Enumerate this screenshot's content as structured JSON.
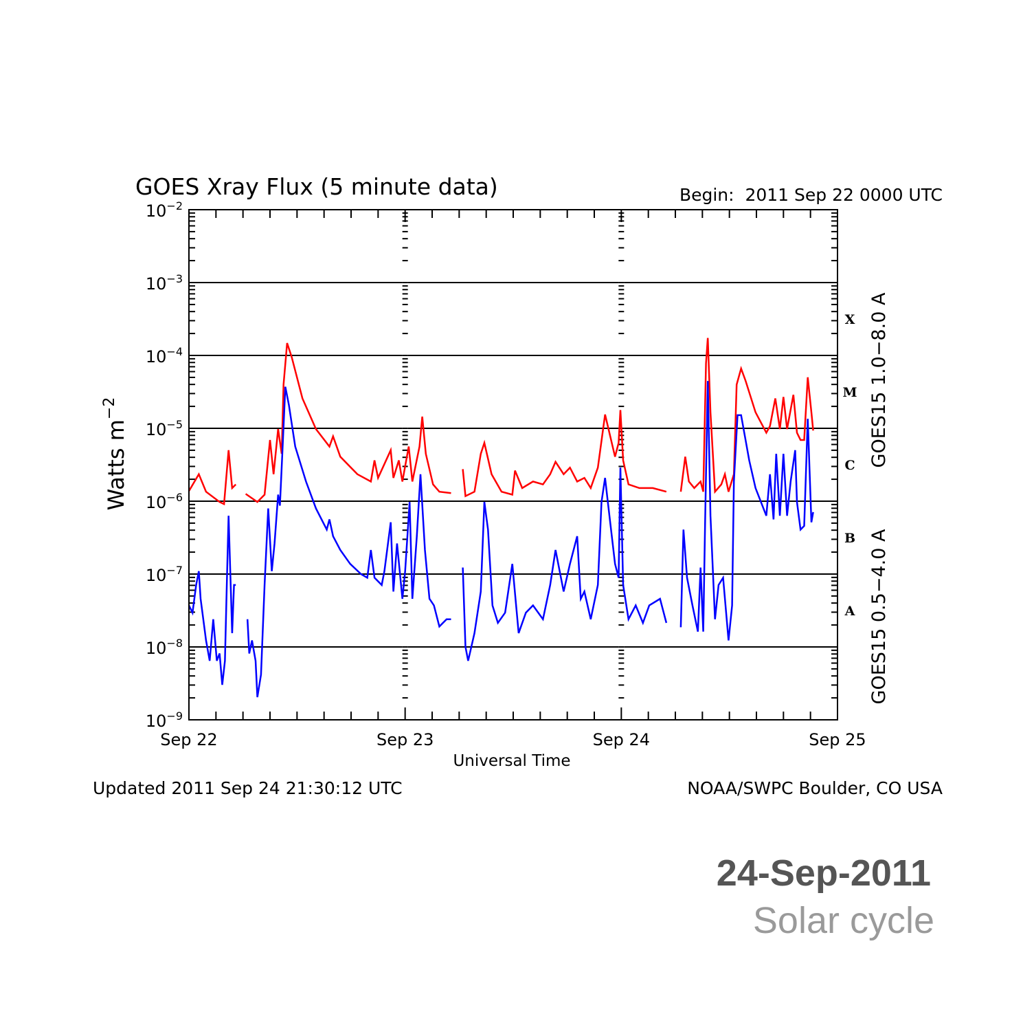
{
  "chart_data": {
    "type": "line",
    "title": "GOES Xray Flux (5 minute data)",
    "begin_label": "Begin:  2011 Sep 22 0000 UTC",
    "xlabel": "Universal Time",
    "ylabel": {
      "text": "Watts m",
      "exp": "−2"
    },
    "y_scale": "log10",
    "ylim_log10": [
      -9,
      -2
    ],
    "xlim_hours": [
      0,
      72
    ],
    "x_ticks": [
      {
        "hour": 0,
        "label": "Sep 22"
      },
      {
        "hour": 24,
        "label": "Sep 23"
      },
      {
        "hour": 48,
        "label": "Sep 24"
      },
      {
        "hour": 72,
        "label": "Sep 25"
      }
    ],
    "y_ticks": [
      {
        "log": -2,
        "base": "10",
        "exp": "−2"
      },
      {
        "log": -3,
        "base": "10",
        "exp": "−3"
      },
      {
        "log": -4,
        "base": "10",
        "exp": "−4"
      },
      {
        "log": -5,
        "base": "10",
        "exp": "−5"
      },
      {
        "log": -6,
        "base": "10",
        "exp": "−6"
      },
      {
        "log": -7,
        "base": "10",
        "exp": "−7"
      },
      {
        "log": -8,
        "base": "10",
        "exp": "−8"
      },
      {
        "log": -9,
        "base": "10",
        "exp": "−9"
      }
    ],
    "gridlines_log10": [
      -3,
      -4,
      -5,
      -6,
      -7,
      -8
    ],
    "flare_classes": [
      {
        "label": "X",
        "log_center": -3.5
      },
      {
        "label": "M",
        "log_center": -4.5
      },
      {
        "label": "C",
        "log_center": -5.5
      },
      {
        "label": "B",
        "log_center": -6.5
      },
      {
        "label": "A",
        "log_center": -7.5
      }
    ],
    "series": [
      {
        "name": "GOES15 1.0−8.0 A",
        "color": "#ff0000",
        "units": "hours since begin, log10(W m^-2)",
        "segments": [
          [
            [
              0,
              -5.86
            ],
            [
              1.1,
              -5.63
            ],
            [
              1.9,
              -5.87
            ],
            [
              3.4,
              -6.01
            ],
            [
              3.9,
              -6.04
            ],
            [
              4.4,
              -5.3
            ],
            [
              4.8,
              -5.82
            ],
            [
              5.2,
              -5.77
            ]
          ],
          [
            [
              6.3,
              -5.9
            ],
            [
              7.6,
              -6.01
            ],
            [
              8.4,
              -5.91
            ],
            [
              9.0,
              -5.16
            ],
            [
              9.4,
              -5.63
            ],
            [
              9.9,
              -5.01
            ],
            [
              10.3,
              -5.35
            ],
            [
              10.5,
              -4.4
            ],
            [
              10.9,
              -3.83
            ],
            [
              11.4,
              -4.02
            ],
            [
              12.6,
              -4.59
            ],
            [
              14.1,
              -5.01
            ],
            [
              15.6,
              -5.25
            ],
            [
              16.0,
              -5.11
            ],
            [
              16.8,
              -5.39
            ],
            [
              18.7,
              -5.63
            ],
            [
              20.2,
              -5.73
            ],
            [
              20.6,
              -5.44
            ],
            [
              21.0,
              -5.68
            ],
            [
              22.4,
              -5.3
            ],
            [
              22.7,
              -5.68
            ],
            [
              23.3,
              -5.44
            ],
            [
              23.7,
              -5.73
            ],
            [
              24.4,
              -5.25
            ],
            [
              24.8,
              -5.73
            ],
            [
              25.6,
              -5.25
            ],
            [
              25.9,
              -4.84
            ],
            [
              26.3,
              -5.35
            ],
            [
              27.1,
              -5.77
            ],
            [
              27.8,
              -5.87
            ],
            [
              29.1,
              -5.89
            ]
          ],
          [
            [
              30.4,
              -5.56
            ],
            [
              30.7,
              -5.93
            ],
            [
              31.7,
              -5.87
            ],
            [
              32.4,
              -5.35
            ],
            [
              32.8,
              -5.2
            ],
            [
              33.6,
              -5.63
            ],
            [
              34.7,
              -5.87
            ],
            [
              35.9,
              -5.91
            ],
            [
              36.2,
              -5.58
            ],
            [
              37.0,
              -5.82
            ],
            [
              38.2,
              -5.73
            ],
            [
              39.3,
              -5.77
            ],
            [
              40.1,
              -5.63
            ],
            [
              40.7,
              -5.46
            ],
            [
              41.6,
              -5.63
            ],
            [
              42.3,
              -5.54
            ],
            [
              43.1,
              -5.73
            ],
            [
              43.9,
              -5.68
            ],
            [
              44.6,
              -5.82
            ],
            [
              45.4,
              -5.54
            ],
            [
              46.2,
              -4.81
            ],
            [
              46.5,
              -4.97
            ],
            [
              47.3,
              -5.39
            ],
            [
              47.7,
              -5.2
            ],
            [
              47.9,
              -4.75
            ],
            [
              48.2,
              -5.44
            ],
            [
              48.8,
              -5.77
            ],
            [
              50.0,
              -5.82
            ],
            [
              51.5,
              -5.82
            ],
            [
              53.0,
              -5.87
            ]
          ],
          [
            [
              54.6,
              -5.87
            ],
            [
              55.1,
              -5.39
            ],
            [
              55.5,
              -5.73
            ],
            [
              56.1,
              -5.82
            ],
            [
              56.8,
              -5.73
            ],
            [
              57.1,
              -5.87
            ],
            [
              57.4,
              -4.11
            ],
            [
              57.6,
              -3.76
            ],
            [
              57.9,
              -4.78
            ],
            [
              58.4,
              -5.87
            ],
            [
              59.1,
              -5.77
            ],
            [
              59.5,
              -5.63
            ],
            [
              59.9,
              -5.87
            ],
            [
              60.5,
              -5.63
            ],
            [
              60.8,
              -4.4
            ],
            [
              61.3,
              -4.18
            ],
            [
              61.8,
              -4.35
            ],
            [
              62.9,
              -4.78
            ],
            [
              64.1,
              -5.06
            ],
            [
              64.5,
              -4.97
            ],
            [
              65.1,
              -4.59
            ],
            [
              65.6,
              -5.01
            ],
            [
              66.0,
              -4.57
            ],
            [
              66.4,
              -5.01
            ],
            [
              67.1,
              -4.54
            ],
            [
              67.5,
              -5.06
            ],
            [
              67.9,
              -5.16
            ],
            [
              68.3,
              -5.16
            ],
            [
              68.7,
              -4.3
            ],
            [
              69.1,
              -4.78
            ],
            [
              69.3,
              -5.03
            ]
          ]
        ]
      },
      {
        "name": "GOES15 0.5−4.0 A",
        "color": "#0000ff",
        "units": "hours since begin, log10(W m^-2)",
        "segments": [
          [
            [
              0,
              -7.43
            ],
            [
              0.4,
              -7.53
            ],
            [
              0.8,
              -7.15
            ],
            [
              1.1,
              -6.96
            ],
            [
              1.3,
              -7.34
            ],
            [
              1.9,
              -7.91
            ],
            [
              2.3,
              -8.19
            ],
            [
              2.7,
              -7.62
            ],
            [
              3.1,
              -8.19
            ],
            [
              3.4,
              -8.09
            ],
            [
              3.7,
              -8.52
            ],
            [
              4.0,
              -8.19
            ],
            [
              4.2,
              -7.15
            ],
            [
              4.4,
              -6.2
            ],
            [
              4.8,
              -7.81
            ],
            [
              5.0,
              -7.15
            ],
            [
              5.2,
              -7.15
            ]
          ],
          [
            [
              6.5,
              -7.62
            ],
            [
              6.7,
              -8.09
            ],
            [
              7.0,
              -7.91
            ],
            [
              7.4,
              -8.19
            ],
            [
              7.6,
              -8.69
            ],
            [
              8.0,
              -8.38
            ],
            [
              8.4,
              -7.15
            ],
            [
              8.8,
              -6.1
            ],
            [
              9.2,
              -6.96
            ],
            [
              9.5,
              -6.58
            ],
            [
              9.9,
              -5.91
            ],
            [
              10.1,
              -6.06
            ],
            [
              10.4,
              -5.25
            ],
            [
              10.7,
              -4.43
            ],
            [
              11.1,
              -4.68
            ],
            [
              11.8,
              -5.25
            ],
            [
              13.0,
              -5.73
            ],
            [
              14.1,
              -6.1
            ],
            [
              15.3,
              -6.39
            ],
            [
              15.6,
              -6.25
            ],
            [
              16.0,
              -6.48
            ],
            [
              16.8,
              -6.67
            ],
            [
              17.9,
              -6.86
            ],
            [
              19.1,
              -7.0
            ],
            [
              19.8,
              -7.05
            ],
            [
              20.2,
              -6.67
            ],
            [
              20.6,
              -7.05
            ],
            [
              21.4,
              -7.15
            ],
            [
              21.7,
              -6.96
            ],
            [
              22.4,
              -6.29
            ],
            [
              22.7,
              -7.24
            ],
            [
              23.1,
              -6.58
            ],
            [
              23.7,
              -7.34
            ],
            [
              24.0,
              -6.96
            ],
            [
              24.5,
              -6.01
            ],
            [
              24.8,
              -7.34
            ],
            [
              25.3,
              -6.48
            ],
            [
              25.7,
              -5.63
            ],
            [
              26.2,
              -6.67
            ],
            [
              26.7,
              -7.34
            ],
            [
              27.2,
              -7.43
            ],
            [
              27.8,
              -7.72
            ],
            [
              28.6,
              -7.62
            ],
            [
              29.1,
              -7.62
            ]
          ],
          [
            [
              30.4,
              -6.91
            ],
            [
              30.7,
              -8.0
            ],
            [
              31.0,
              -8.19
            ],
            [
              31.7,
              -7.81
            ],
            [
              32.4,
              -7.24
            ],
            [
              32.8,
              -6.01
            ],
            [
              33.2,
              -6.39
            ],
            [
              33.7,
              -7.43
            ],
            [
              34.3,
              -7.67
            ],
            [
              35.1,
              -7.53
            ],
            [
              35.9,
              -6.86
            ],
            [
              36.6,
              -7.81
            ],
            [
              37.4,
              -7.53
            ],
            [
              38.2,
              -7.43
            ],
            [
              39.3,
              -7.62
            ],
            [
              40.1,
              -7.15
            ],
            [
              40.7,
              -6.67
            ],
            [
              41.6,
              -7.24
            ],
            [
              42.3,
              -6.86
            ],
            [
              43.1,
              -6.48
            ],
            [
              43.5,
              -7.34
            ],
            [
              43.9,
              -7.24
            ],
            [
              44.6,
              -7.62
            ],
            [
              45.4,
              -7.15
            ],
            [
              45.8,
              -6.01
            ],
            [
              46.2,
              -5.68
            ],
            [
              46.5,
              -6.01
            ],
            [
              47.3,
              -6.86
            ],
            [
              47.7,
              -7.05
            ],
            [
              47.9,
              -5.54
            ],
            [
              48.2,
              -7.15
            ],
            [
              48.8,
              -7.62
            ],
            [
              49.6,
              -7.43
            ],
            [
              50.4,
              -7.67
            ],
            [
              51.1,
              -7.43
            ],
            [
              52.3,
              -7.34
            ],
            [
              53.0,
              -7.67
            ]
          ],
          [
            [
              54.6,
              -7.73
            ],
            [
              54.9,
              -6.39
            ],
            [
              55.3,
              -7.05
            ],
            [
              55.9,
              -7.43
            ],
            [
              56.5,
              -7.79
            ],
            [
              56.8,
              -6.91
            ],
            [
              57.1,
              -7.79
            ],
            [
              57.3,
              -6.29
            ],
            [
              57.6,
              -4.35
            ],
            [
              57.9,
              -6.2
            ],
            [
              58.4,
              -7.62
            ],
            [
              58.8,
              -7.15
            ],
            [
              59.3,
              -7.05
            ],
            [
              59.9,
              -7.91
            ],
            [
              60.3,
              -7.43
            ],
            [
              60.5,
              -5.73
            ],
            [
              60.9,
              -4.82
            ],
            [
              61.3,
              -4.82
            ],
            [
              62.2,
              -5.44
            ],
            [
              62.9,
              -5.82
            ],
            [
              64.1,
              -6.2
            ],
            [
              64.5,
              -5.63
            ],
            [
              64.9,
              -6.25
            ],
            [
              65.2,
              -5.35
            ],
            [
              65.6,
              -6.2
            ],
            [
              66.0,
              -5.35
            ],
            [
              66.4,
              -6.2
            ],
            [
              66.8,
              -5.73
            ],
            [
              67.3,
              -5.3
            ],
            [
              67.5,
              -6.01
            ],
            [
              67.9,
              -6.39
            ],
            [
              68.3,
              -6.34
            ],
            [
              68.7,
              -4.87
            ],
            [
              69.1,
              -6.29
            ],
            [
              69.3,
              -6.15
            ]
          ]
        ]
      }
    ],
    "footer_left": "Updated 2011 Sep 24 21:30:12 UTC",
    "footer_right": "NOAA/SWPC Boulder, CO USA"
  },
  "caption": {
    "date": "24-Sep-2011",
    "subtitle": "Solar cycle"
  }
}
